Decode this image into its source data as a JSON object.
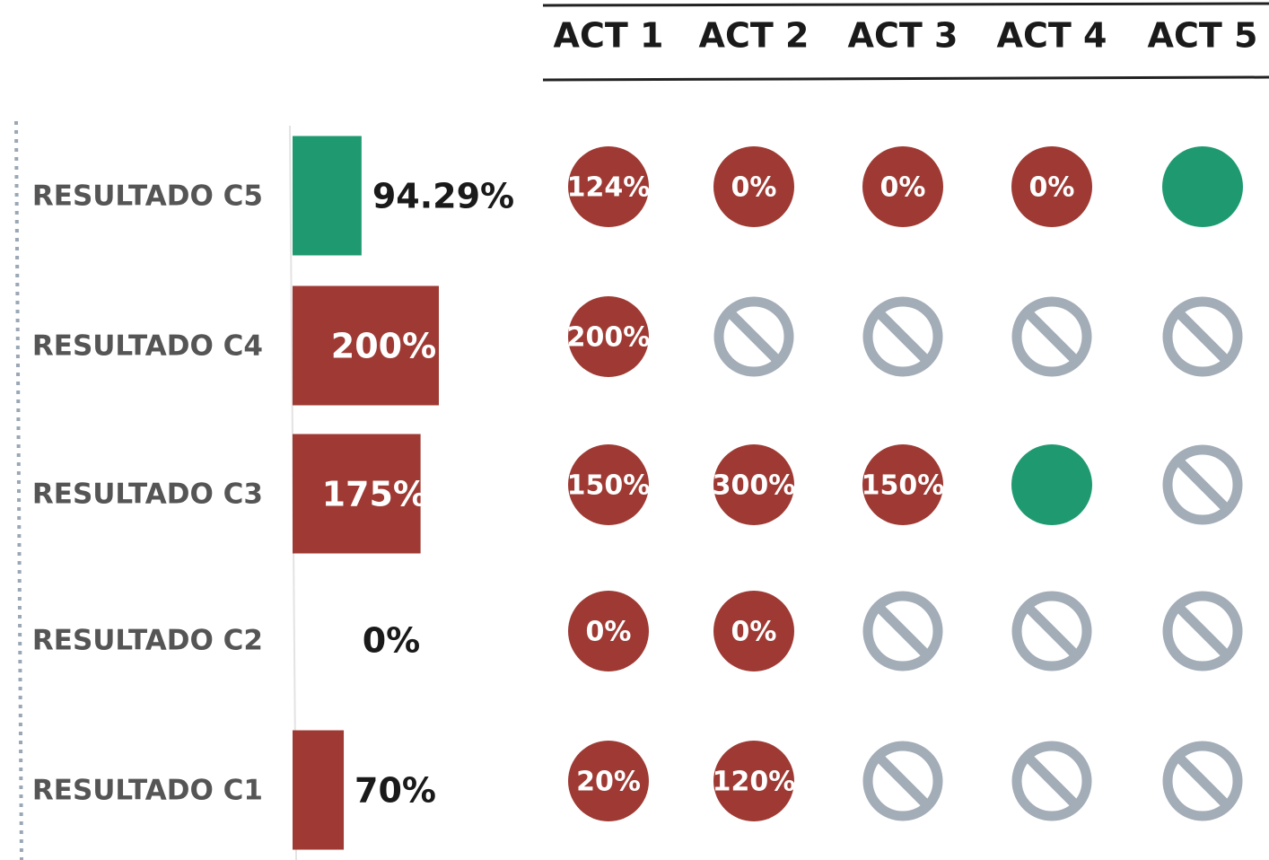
{
  "chart_data": {
    "type": "hbar",
    "categories": [
      "RESULTADO C5",
      "RESULTADO C4",
      "RESULTADO C3",
      "RESULTADO C2",
      "RESULTADO C1"
    ],
    "values": [
      94.29,
      200,
      175,
      0,
      70
    ],
    "value_labels": [
      "94.29%",
      "200%",
      "175%",
      "0%",
      "70%"
    ],
    "colors": [
      "#1f9a70",
      "#9e3a33",
      "#9e3a33",
      "#9e3a33",
      "#9e3a33"
    ]
  },
  "activities": {
    "columns": [
      "ACT 1",
      "ACT 2",
      "ACT 3",
      "ACT 4",
      "ACT 5"
    ],
    "rows": [
      [
        {
          "label": "124%",
          "color": "#9e3a33"
        },
        {
          "label": "0%",
          "color": "#9e3a33"
        },
        {
          "label": "0%",
          "color": "#9e3a33"
        },
        {
          "label": "0%",
          "color": "#9e3a33"
        },
        {
          "color": "#1f9a70"
        }
      ],
      [
        {
          "label": "200%",
          "color": "#9e3a33"
        },
        null,
        null,
        null,
        null
      ],
      [
        {
          "label": "150%",
          "color": "#9e3a33"
        },
        {
          "label": "300%",
          "color": "#9e3a33"
        },
        {
          "label": "150%",
          "color": "#9e3a33"
        },
        {
          "color": "#1f9a70"
        },
        null
      ],
      [
        {
          "label": "0%",
          "color": "#9e3a33"
        },
        {
          "label": "0%",
          "color": "#9e3a33"
        },
        null,
        null,
        null
      ],
      [
        {
          "label": "20%",
          "color": "#9e3a33"
        },
        {
          "label": "120%",
          "color": "#9e3a33"
        },
        null,
        null,
        null
      ]
    ]
  }
}
